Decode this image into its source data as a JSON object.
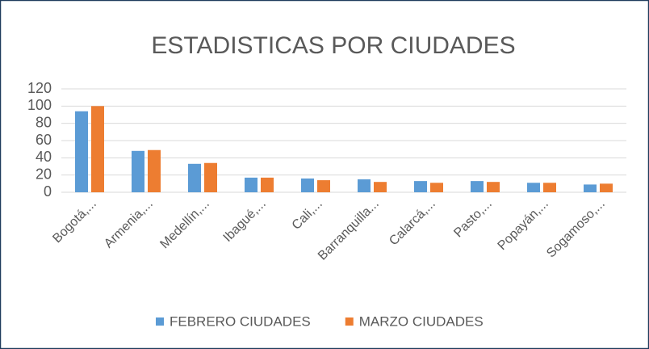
{
  "chart_data": {
    "type": "bar",
    "title": "ESTADISTICAS POR CIUDADES",
    "categories": [
      "Bogotá,...",
      "Armenia,...",
      "Medellín,...",
      "Ibagué,...",
      "Cali,...",
      "Barranquilla...",
      "Calarcá,...",
      "Pasto,...",
      "Popayán,...",
      "Sogamoso,..."
    ],
    "series": [
      {
        "name": "FEBRERO CIUDADES",
        "color": "#5b9bd5",
        "values": [
          94,
          48,
          33,
          17,
          16,
          15,
          13,
          13,
          11,
          9
        ]
      },
      {
        "name": "MARZO CIUDADES",
        "color": "#ed7d31",
        "values": [
          100,
          49,
          34,
          17,
          14,
          12,
          11,
          12,
          11,
          10
        ]
      }
    ],
    "ylim": [
      0,
      120
    ],
    "yticks": [
      0,
      20,
      40,
      60,
      80,
      100,
      120
    ],
    "grid": true,
    "legend": "bottom"
  }
}
